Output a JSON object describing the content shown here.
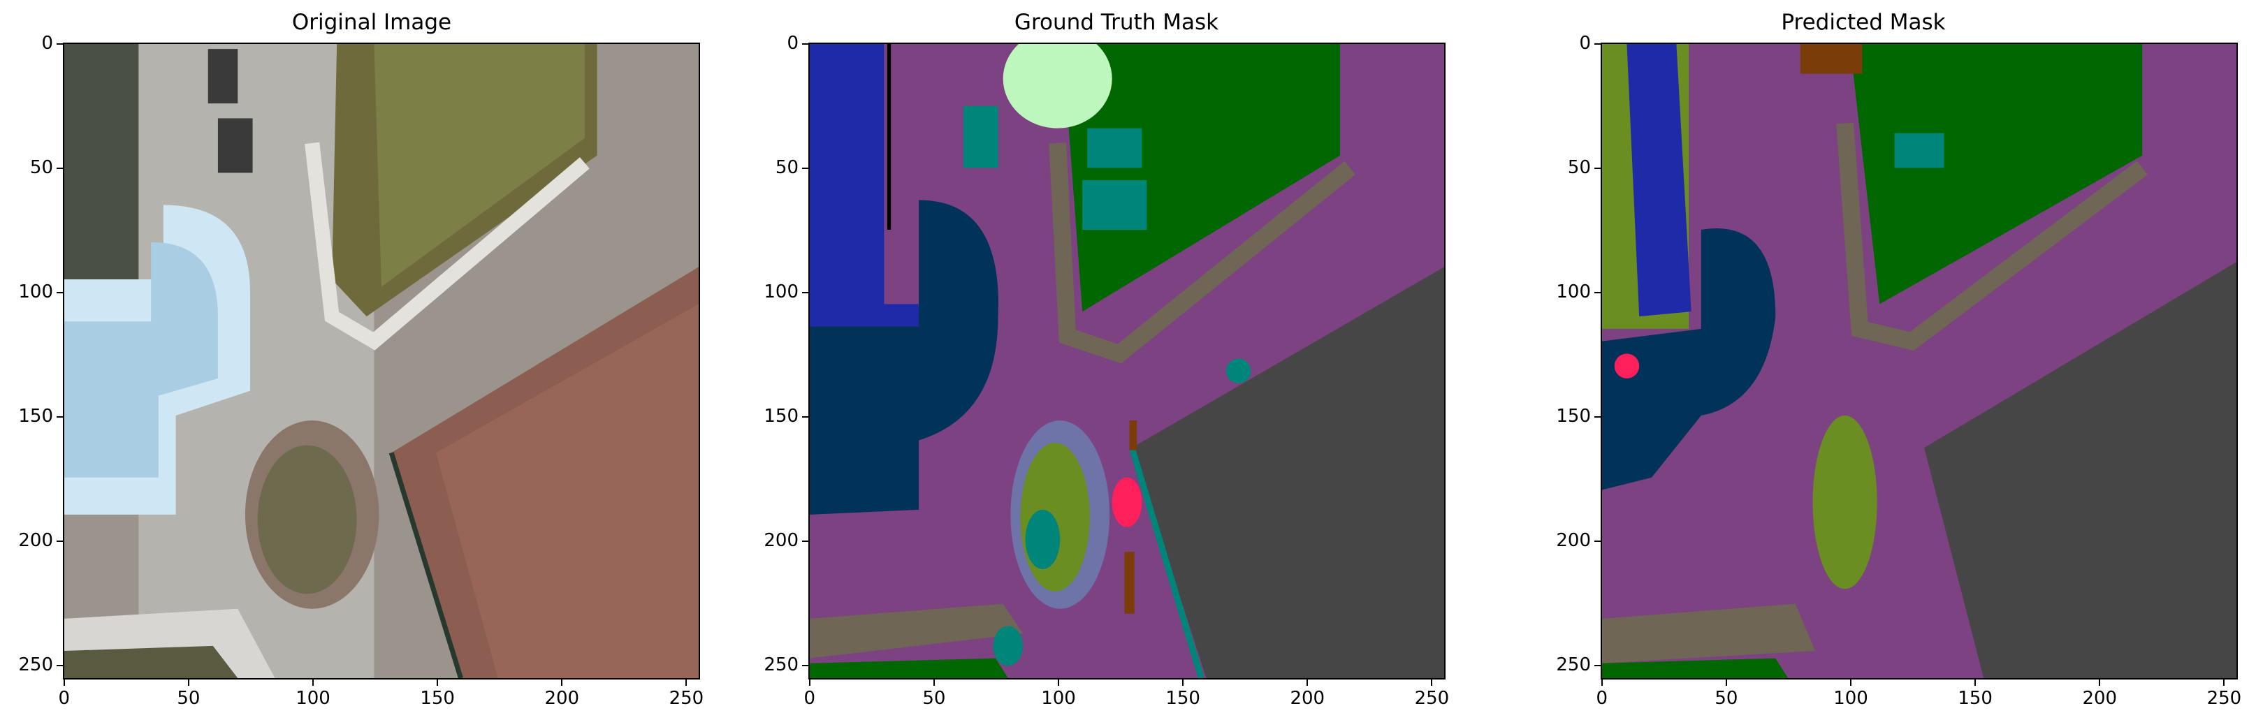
{
  "figure": {
    "panels": [
      {
        "title": "Original Image",
        "kind": "photo"
      },
      {
        "title": "Ground Truth Mask",
        "kind": "gt"
      },
      {
        "title": "Predicted Mask",
        "kind": "pred"
      }
    ],
    "x_ticks": [
      "0",
      "50",
      "100",
      "150",
      "200",
      "250"
    ],
    "y_ticks": [
      "0",
      "50",
      "100",
      "150",
      "200",
      "250"
    ],
    "axis_range": [
      0,
      255
    ],
    "colors": {
      "paved_area": "#7d4282",
      "roof_dark_gray": "#464646",
      "pool_blue": "#1f2aa8",
      "water_dark_blue": "#00325a",
      "grass_green": "#006700",
      "gravel_brown": "#6f6656",
      "vegetation_olive": "#6b8e23",
      "teal": "#00857a",
      "light_green": "#bdf7bd",
      "person_pink": "#ff1f5a",
      "brown": "#7a3d0a",
      "gray_violet": "#6e73a8"
    }
  }
}
